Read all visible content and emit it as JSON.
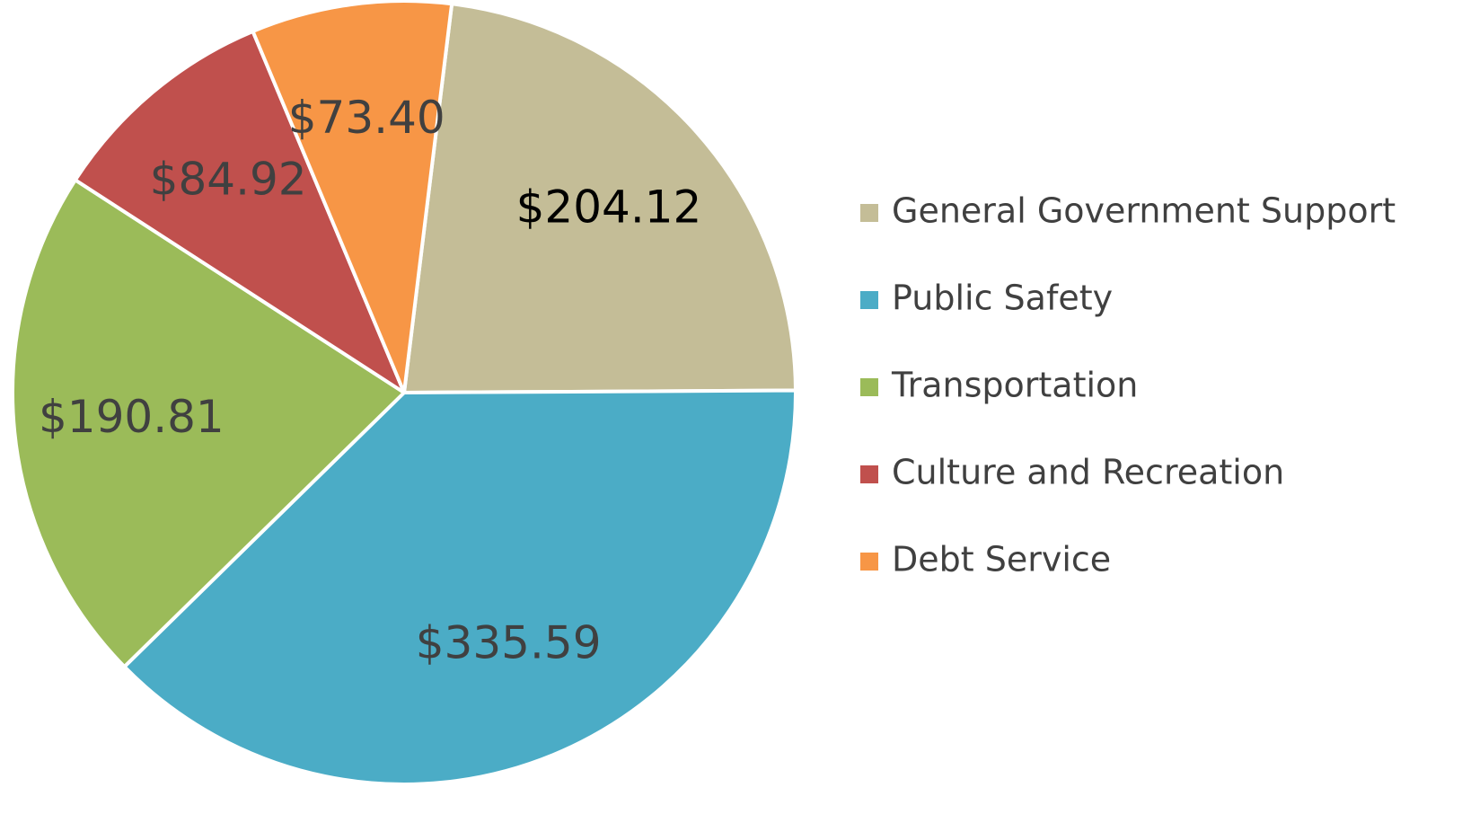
{
  "chart_data": {
    "type": "pie",
    "categories": [
      "General Government Support",
      "Public Safety",
      "Transportation",
      "Culture and Recreation",
      "Debt Service"
    ],
    "values": [
      204.12,
      335.59,
      190.81,
      84.92,
      73.4
    ],
    "value_labels": [
      "$204.12",
      "$335.59",
      "$190.81",
      "$84.92",
      "$73.40"
    ],
    "colors": [
      "#c4bd97",
      "#4bacc6",
      "#9bbb59",
      "#c0504d",
      "#f79646"
    ],
    "value_label_colors": [
      "#000000",
      "#404040",
      "#404040",
      "#404040",
      "#404040"
    ],
    "legend": "right"
  }
}
